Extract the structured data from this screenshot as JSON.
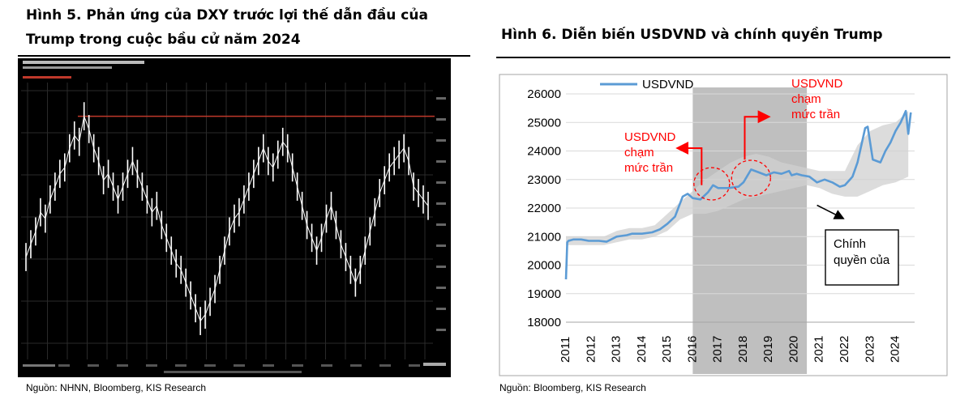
{
  "left_figure": {
    "title_line1": "Hình 5. Phản ứng của DXY trước lợi thế dẫn đầu của",
    "title_line2": "Trump trong cuộc bầu cử năm 2024",
    "source": "Nguồn: NHNN, Bloomberg, KIS Research"
  },
  "right_figure": {
    "title": "Hình 6. Diễn biến USDVND và chính quyền Trump",
    "source": "Nguồn: Bloomberg, KIS Research"
  },
  "chart_data": [
    {
      "type": "line",
      "description_note": "",
      "series": [
        {
          "name": "",
          "color": "#ffffff",
          "values": [
            86,
            88,
            90,
            93,
            92,
            95,
            97,
            99,
            100,
            103,
            105,
            104,
            108,
            106,
            103,
            101,
            98,
            99,
            97,
            95,
            97,
            99,
            101,
            99,
            97,
            95,
            93,
            94,
            91,
            89,
            87,
            85,
            84,
            82,
            80,
            78,
            76,
            77,
            79,
            81,
            84,
            87,
            90,
            92,
            93,
            95,
            97,
            99,
            101,
            103,
            101,
            100,
            102,
            104,
            103,
            100,
            97,
            94,
            91,
            89,
            87,
            89,
            92,
            94,
            91,
            88,
            86,
            84,
            82,
            84,
            87,
            90,
            93,
            96,
            98,
            100,
            101,
            102,
            103,
            101,
            97,
            96,
            95,
            94
          ]
        }
      ],
      "reference_line_color": "#c0392b"
    },
    {
      "type": "line",
      "title": "",
      "x_tick_labels": [
        "2011",
        "2012",
        "2013",
        "2014",
        "2015",
        "2016",
        "2017",
        "2018",
        "2019",
        "2020",
        "2021",
        "2022",
        "2023",
        "2024"
      ],
      "y_ticks": [
        18000,
        19000,
        20000,
        21000,
        22000,
        23000,
        24000,
        25000,
        26000
      ],
      "ylim": [
        18000,
        26000
      ],
      "xlim": [
        2011,
        2024.75
      ],
      "legend": "top-left",
      "series": [
        {
          "name": "USDVND",
          "color": "#5b9bd5",
          "x": [
            2011.0,
            2011.05,
            2011.1,
            2011.3,
            2011.6,
            2011.9,
            2012.3,
            2012.6,
            2013.0,
            2013.4,
            2013.6,
            2014.0,
            2014.4,
            2014.7,
            2015.0,
            2015.3,
            2015.6,
            2015.8,
            2016.0,
            2016.3,
            2016.6,
            2016.8,
            2017.0,
            2017.4,
            2017.8,
            2018.0,
            2018.3,
            2018.6,
            2018.9,
            2019.2,
            2019.5,
            2019.8,
            2019.9,
            2020.1,
            2020.3,
            2020.6,
            2020.9,
            2021.2,
            2021.5,
            2021.8,
            2022.0,
            2022.2,
            2022.3,
            2022.5,
            2022.8,
            2022.9,
            2023.1,
            2023.4,
            2023.6,
            2023.8,
            2024.0,
            2024.2,
            2024.4,
            2024.5,
            2024.6
          ],
          "values": [
            19500,
            20800,
            20850,
            20900,
            20900,
            20850,
            20850,
            20820,
            21000,
            21050,
            21100,
            21100,
            21150,
            21250,
            21450,
            21700,
            22400,
            22500,
            22350,
            22300,
            22550,
            22800,
            22700,
            22700,
            22750,
            22900,
            23350,
            23250,
            23150,
            23250,
            23200,
            23300,
            23150,
            23200,
            23150,
            23100,
            22900,
            23000,
            22900,
            22750,
            22800,
            23000,
            23100,
            23600,
            24800,
            24850,
            23700,
            23600,
            24000,
            24300,
            24700,
            25000,
            25400,
            24600,
            25350
          ]
        },
        {
          "name": "",
          "color": "#d0d0d0",
          "x": [
            2011.0,
            2011.5,
            2012.0,
            2012.5,
            2013.0,
            2013.5,
            2014.0,
            2014.5,
            2015.0,
            2015.5,
            2016.0,
            2016.5,
            2017.0,
            2017.5,
            2018.0,
            2018.5,
            2019.0,
            2019.5,
            2020.0,
            2020.5,
            2021.0,
            2021.5,
            2022.0,
            2022.5,
            2023.0,
            2023.5,
            2024.0,
            2024.5
          ],
          "upper": [
            21000,
            21000,
            21000,
            21000,
            21200,
            21300,
            21300,
            21400,
            21800,
            22200,
            22600,
            23000,
            23300,
            23600,
            23800,
            23900,
            23800,
            23600,
            23500,
            23400,
            23300,
            23300,
            23300,
            24200,
            24700,
            24900,
            25000,
            25400
          ],
          "lower": [
            20700,
            20700,
            20700,
            20700,
            20800,
            20900,
            20900,
            21000,
            21200,
            21600,
            21800,
            21800,
            21900,
            22100,
            22300,
            22400,
            22500,
            22600,
            22700,
            22800,
            22700,
            22500,
            22400,
            22400,
            22600,
            22800,
            22900,
            23100
          ]
        }
      ],
      "shaded_period": [
        2016.0,
        2020.5
      ],
      "annotations": [
        {
          "line1": "USDVND",
          "line2": "chạm",
          "line3": "mức trần"
        },
        {
          "line1": "USDVND",
          "line2": "chạm",
          "line3": "mức trần"
        }
      ],
      "callout": {
        "line1": "Chính",
        "line2": "quyền của"
      },
      "colors": {
        "annotation": "#ff0000",
        "shade": "#bfbfbf",
        "series": "#5b9bd5"
      }
    }
  ]
}
